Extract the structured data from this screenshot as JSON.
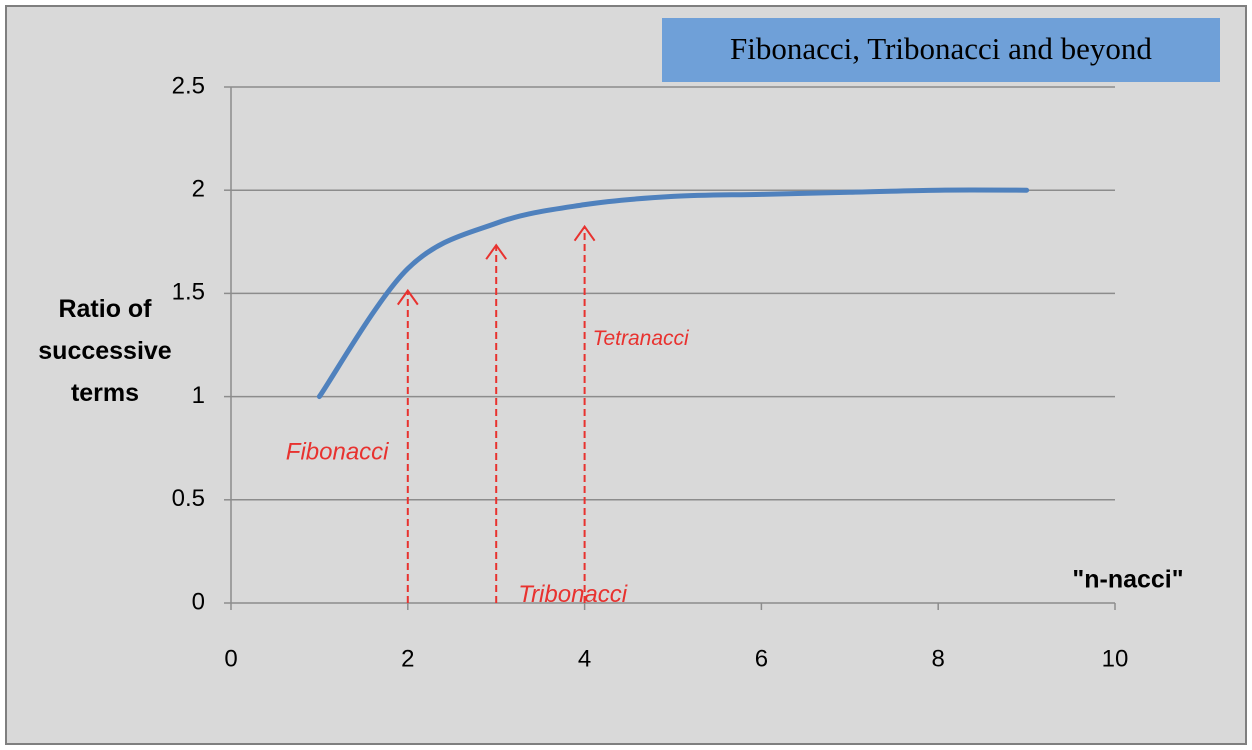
{
  "chart_data": {
    "type": "line",
    "title": "Fibonacci, Tribonacci and beyond",
    "xlabel": "\"n-nacci\"",
    "ylabel": "Ratio of successive terms",
    "series": [
      {
        "name": "Ratio",
        "color": "#4f81bd",
        "x": [
          1,
          2,
          3,
          4,
          5,
          6,
          7,
          8,
          9
        ],
        "values": [
          1,
          1.62,
          1.84,
          1.93,
          1.97,
          1.98,
          1.99,
          2.0,
          2.0
        ]
      }
    ],
    "annotations": [
      {
        "text": "Fibonacci",
        "x": 2,
        "color": "#e8322f"
      },
      {
        "text": "Tribonacci",
        "x": 3,
        "color": "#e8322f"
      },
      {
        "text": "Tetranacci",
        "x": 4,
        "color": "#e8322f"
      }
    ],
    "xlim": [
      0,
      10
    ],
    "xticks": [
      0,
      2,
      4,
      6,
      8,
      10
    ],
    "ylim": [
      0,
      2.5
    ],
    "yticks": [
      0,
      0.5,
      1,
      1.5,
      2,
      2.5
    ],
    "grid": true
  }
}
